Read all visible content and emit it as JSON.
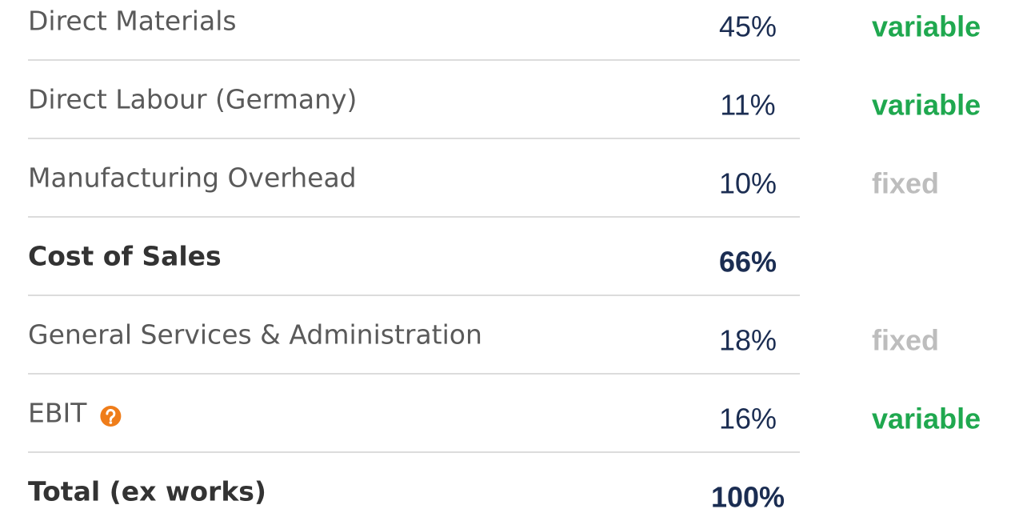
{
  "table": {
    "rows": [
      {
        "label": "Direct Materials",
        "value": "45%",
        "type": {
          "text": "variable",
          "color": "#1fa84f"
        }
      },
      {
        "label": "Direct Labour (Germany)",
        "value": "11%",
        "type": {
          "text": "variable",
          "color": "#1fa84f"
        }
      },
      {
        "label": "Manufacturing Overhead",
        "value": "10%",
        "type": {
          "text": "fixed",
          "color": "#bdbdbd"
        }
      },
      {
        "label": "Cost of Sales",
        "value": "66%",
        "bold": true
      },
      {
        "label": "General Services & Administration",
        "value": "18%",
        "type": {
          "text": "fixed",
          "color": "#bdbdbd"
        }
      },
      {
        "label": "EBIT",
        "value": "16%",
        "help": true,
        "type": {
          "text": "variable",
          "color": "#1fa84f"
        }
      },
      {
        "label": "Total (ex works)",
        "value": "100%",
        "bold": true
      }
    ]
  }
}
